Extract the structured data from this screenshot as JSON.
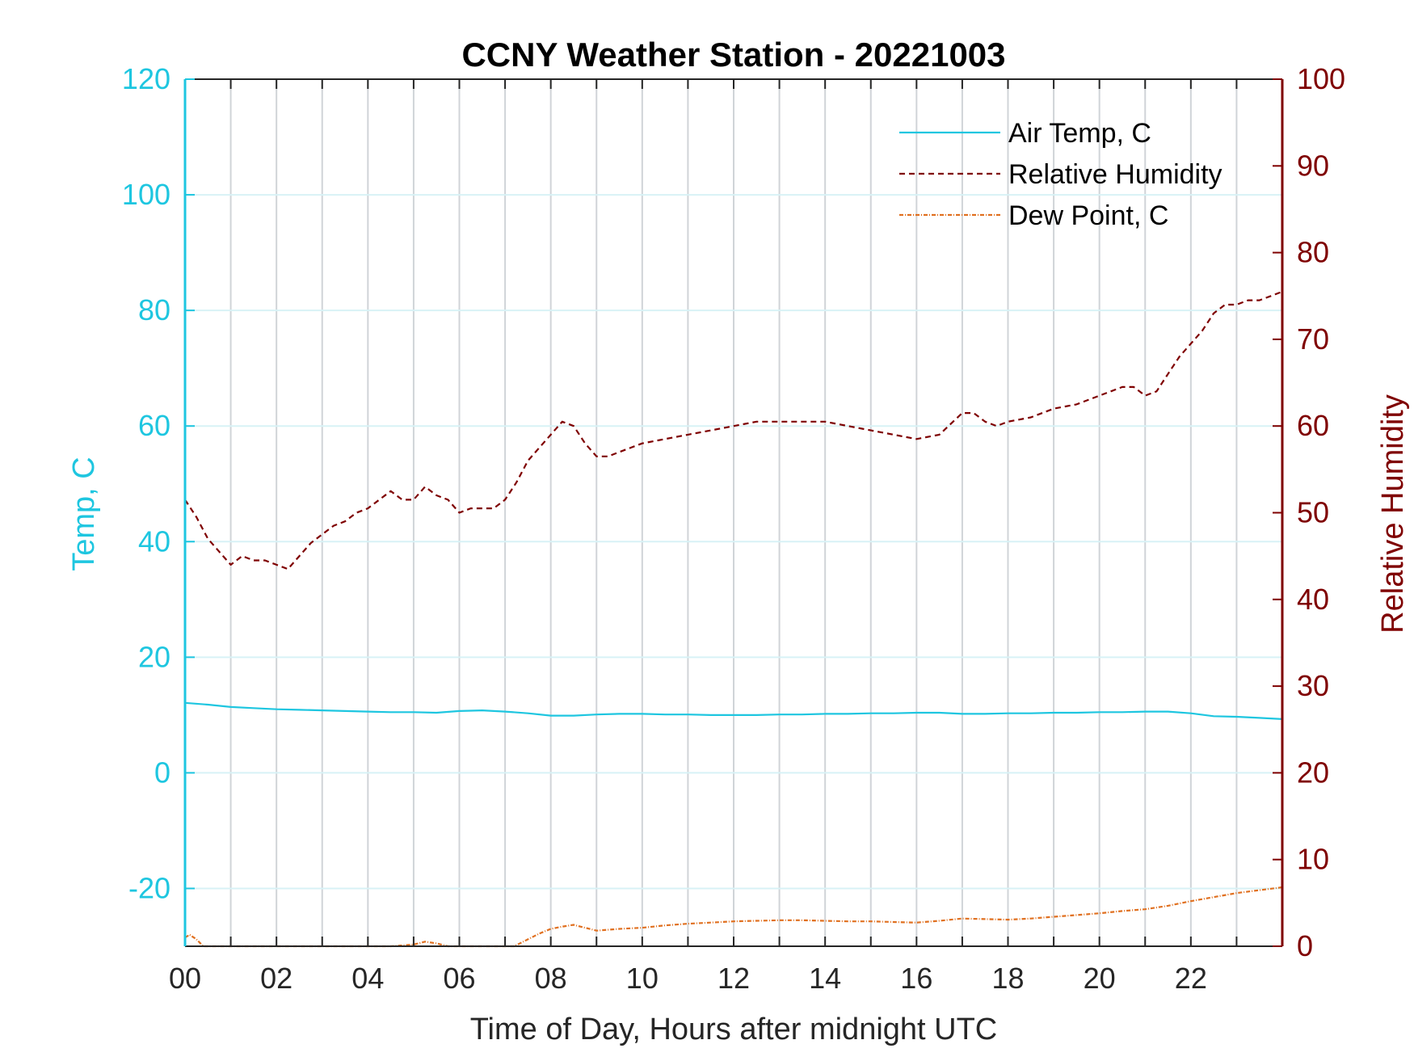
{
  "chart_data": {
    "type": "line",
    "title": "CCNY Weather Station - 20221003",
    "xlabel": "Time of Day, Hours after midnight UTC",
    "ylabel_left": "Temp, C",
    "ylabel_right": "Relative Humidity",
    "xlim": [
      0,
      24
    ],
    "ylim_left": [
      -30,
      120
    ],
    "ylim_right": [
      0,
      100
    ],
    "x_ticks": [
      0,
      2,
      4,
      6,
      8,
      10,
      12,
      14,
      16,
      18,
      20,
      22
    ],
    "x_tick_labels": [
      "00",
      "02",
      "04",
      "06",
      "08",
      "10",
      "12",
      "14",
      "16",
      "18",
      "20",
      "22"
    ],
    "y_left_ticks": [
      -20,
      0,
      20,
      40,
      60,
      80,
      100,
      120
    ],
    "y_left_tick_labels": [
      "-20",
      "0",
      "20",
      "40",
      "60",
      "80",
      "100",
      "120"
    ],
    "y_right_ticks": [
      0,
      10,
      20,
      30,
      40,
      50,
      60,
      70,
      80,
      90,
      100
    ],
    "y_right_tick_labels": [
      "0",
      "10",
      "20",
      "30",
      "40",
      "50",
      "60",
      "70",
      "80",
      "90",
      "100"
    ],
    "grid": true,
    "legend_position": "top-right",
    "colors": {
      "left_axis": "#1ec6e0",
      "right_axis": "#7f0000",
      "air_temp": "#1ec6e0",
      "humidity": "#7f0000",
      "dew_point": "#e07020"
    },
    "series": [
      {
        "name": "Air Temp, C",
        "axis": "left",
        "style": "solid",
        "x": [
          0,
          0.5,
          1,
          1.5,
          2,
          2.5,
          3,
          3.5,
          4,
          4.5,
          5,
          5.5,
          6,
          6.5,
          7,
          7.5,
          8,
          8.5,
          9,
          9.5,
          10,
          10.5,
          11,
          11.5,
          12,
          12.5,
          13,
          13.5,
          14,
          14.5,
          15,
          15.5,
          16,
          16.5,
          17,
          17.5,
          18,
          18.5,
          19,
          19.5,
          20,
          20.5,
          21,
          21.5,
          22,
          22.5,
          23,
          23.5,
          24
        ],
        "y": [
          12.1,
          11.8,
          11.4,
          11.2,
          11.0,
          10.9,
          10.8,
          10.7,
          10.6,
          10.5,
          10.5,
          10.4,
          10.7,
          10.8,
          10.6,
          10.3,
          9.9,
          9.9,
          10.1,
          10.2,
          10.2,
          10.1,
          10.1,
          10.0,
          10.0,
          10.0,
          10.1,
          10.1,
          10.2,
          10.2,
          10.3,
          10.3,
          10.4,
          10.4,
          10.2,
          10.2,
          10.3,
          10.3,
          10.4,
          10.4,
          10.5,
          10.5,
          10.6,
          10.6,
          10.3,
          9.8,
          9.7,
          9.5,
          9.3
        ]
      },
      {
        "name": "Relative Humidity",
        "axis": "right",
        "style": "dashed",
        "x": [
          0,
          0.25,
          0.5,
          0.75,
          1,
          1.25,
          1.5,
          1.75,
          2,
          2.25,
          2.5,
          2.75,
          3,
          3.25,
          3.5,
          3.75,
          4,
          4.25,
          4.5,
          4.75,
          5,
          5.25,
          5.5,
          5.75,
          6,
          6.25,
          6.5,
          6.75,
          7,
          7.25,
          7.5,
          7.75,
          8,
          8.25,
          8.5,
          8.75,
          9,
          9.25,
          9.5,
          9.75,
          10,
          10.5,
          11,
          11.5,
          12,
          12.5,
          13,
          13.5,
          14,
          14.5,
          15,
          15.5,
          16,
          16.5,
          17,
          17.25,
          17.5,
          17.75,
          18,
          18.5,
          19,
          19.5,
          20,
          20.25,
          20.5,
          20.75,
          21,
          21.25,
          21.5,
          21.75,
          22,
          22.25,
          22.5,
          22.75,
          23,
          23.25,
          23.5,
          23.75,
          24
        ],
        "y": [
          51.5,
          49.5,
          47,
          45.5,
          44,
          45,
          44.5,
          44.5,
          44,
          43.5,
          45,
          46.5,
          47.5,
          48.5,
          49,
          50,
          50.5,
          51.5,
          52.5,
          51.5,
          51.5,
          53,
          52,
          51.5,
          50,
          50.5,
          50.5,
          50.5,
          51.5,
          53.5,
          56,
          57.5,
          59,
          60.5,
          60,
          58,
          56.5,
          56.5,
          57,
          57.5,
          58,
          58.5,
          59,
          59.5,
          60,
          60.5,
          60.5,
          60.5,
          60.5,
          60,
          59.5,
          59,
          58.5,
          59,
          61.5,
          61.5,
          60.5,
          60,
          60.5,
          61,
          62,
          62.5,
          63.5,
          64,
          64.5,
          64.5,
          63.5,
          64,
          66,
          68,
          69.5,
          71,
          73,
          74,
          74,
          74.5,
          74.5,
          75,
          75.5
        ]
      },
      {
        "name": "Dew Point, C",
        "axis": "left",
        "style": "dashdot",
        "x": [
          0,
          0.1,
          0.25,
          0.4,
          4.5,
          5,
          5.25,
          5.5,
          5.75,
          7.2,
          7.5,
          7.75,
          8,
          8.25,
          8.5,
          8.75,
          9,
          9.5,
          10,
          10.5,
          11,
          11.5,
          12,
          12.5,
          13,
          13.5,
          14,
          14.5,
          15,
          15.5,
          16,
          16.5,
          17,
          17.5,
          18,
          18.5,
          19,
          19.5,
          20,
          20.5,
          21,
          21.5,
          22,
          22.5,
          23,
          23.5,
          24
        ],
        "y": [
          -28.5,
          -28.0,
          -28.8,
          -30.0,
          -30.0,
          -29.7,
          -29.2,
          -29.5,
          -30.0,
          -30.0,
          -28.8,
          -27.8,
          -27.0,
          -26.6,
          -26.3,
          -26.8,
          -27.3,
          -27.0,
          -26.8,
          -26.4,
          -26.1,
          -25.9,
          -25.7,
          -25.6,
          -25.5,
          -25.5,
          -25.6,
          -25.7,
          -25.7,
          -25.8,
          -25.9,
          -25.6,
          -25.2,
          -25.3,
          -25.4,
          -25.2,
          -24.9,
          -24.6,
          -24.3,
          -23.9,
          -23.6,
          -23.0,
          -22.2,
          -21.5,
          -20.8,
          -20.3,
          -19.8
        ]
      }
    ]
  }
}
